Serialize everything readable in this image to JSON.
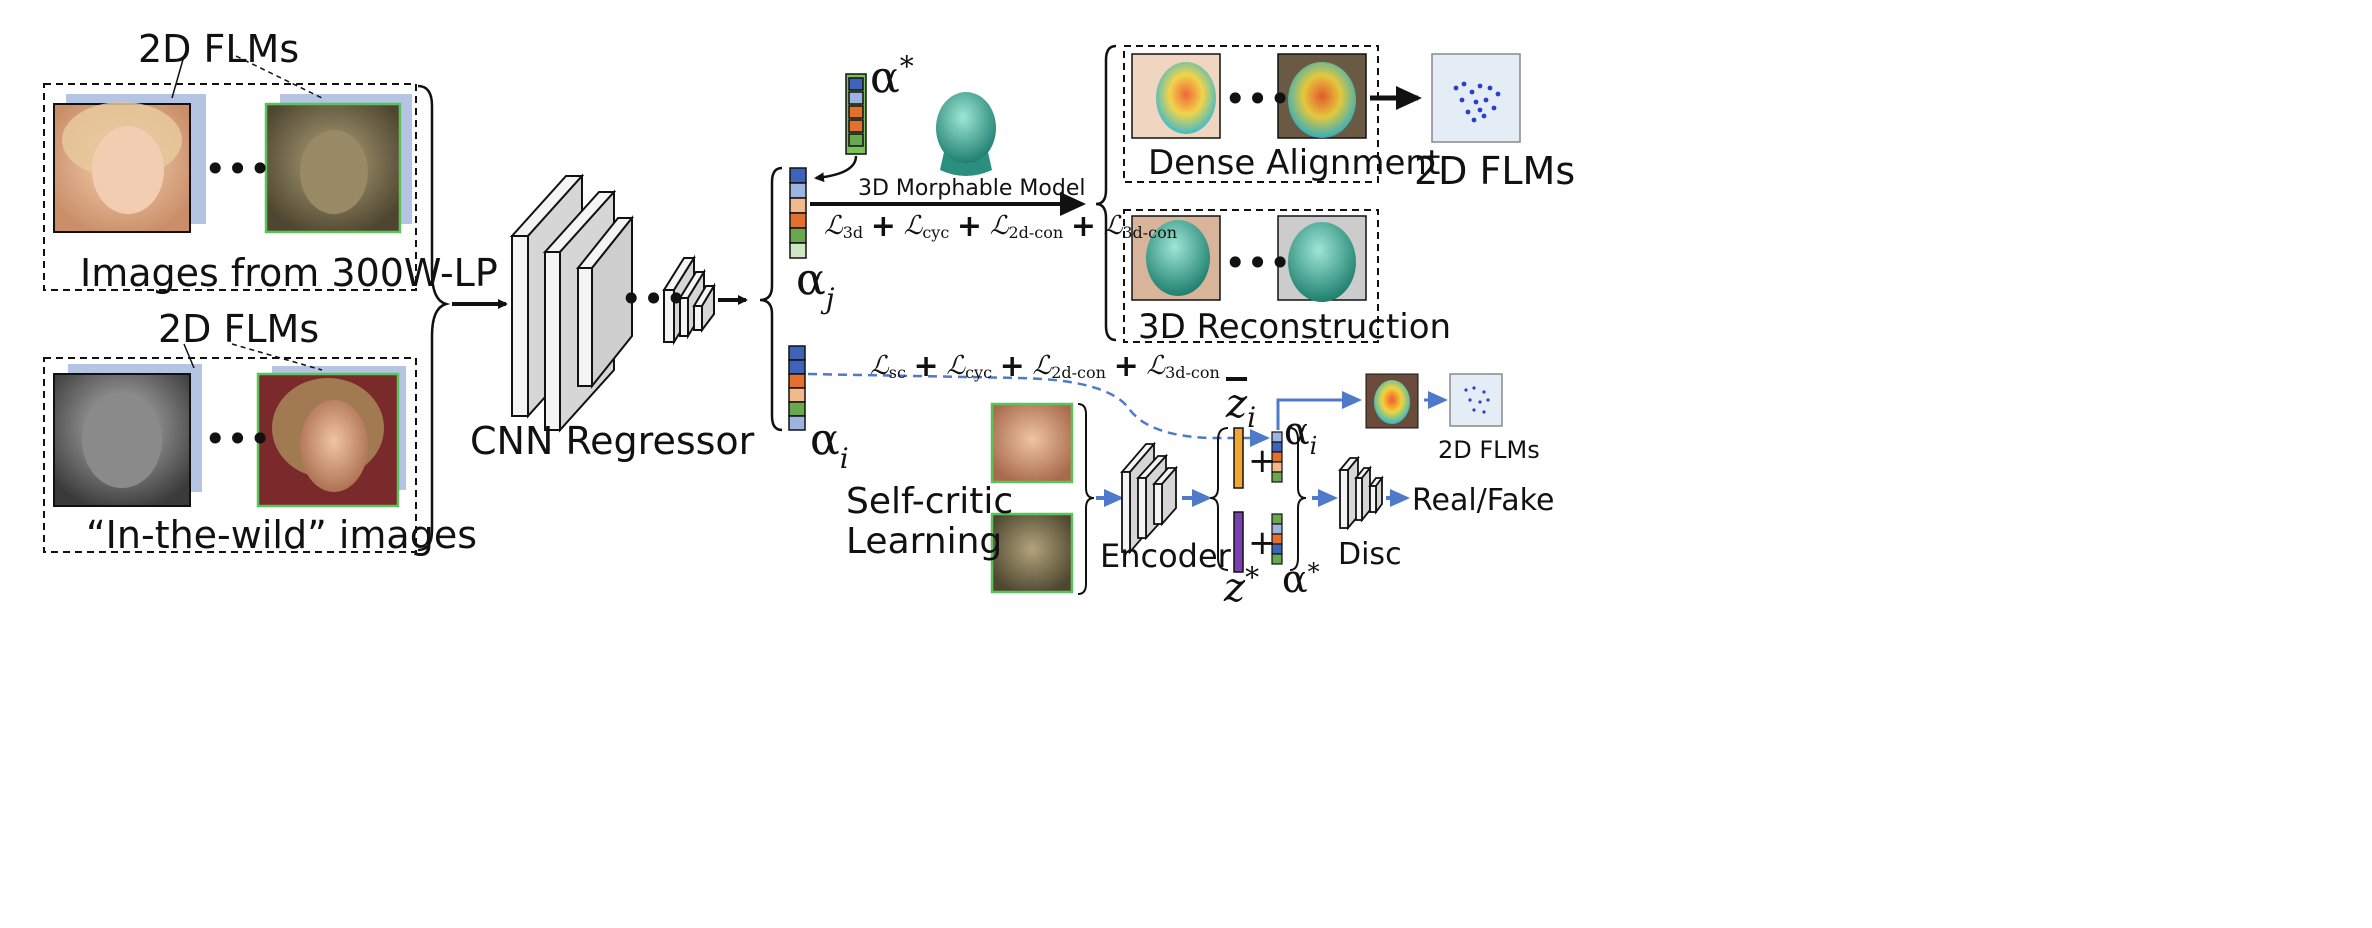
{
  "labels": {
    "flm_top": "2D FLMs",
    "flm_mid": "2D FLMs",
    "images_300w": "Images from 300W-LP",
    "in_the_wild": "“In-the-wild” images",
    "cnn_regressor": "CNN Regressor",
    "morphable_model": "3D Morphable Model",
    "dense_alignment": "Dense Alignment",
    "reconstruction": "3D Reconstruction",
    "flm_right": "2D FLMs",
    "flm_small": "2D FLMs",
    "self_critic_line1": "Self-critic",
    "self_critic_line2": "Learning",
    "encoder": "Encoder",
    "disc": "Disc",
    "real_fake": "Real/Fake"
  },
  "symbols": {
    "alpha": "α",
    "star": "*",
    "sub_j": "j",
    "sub_i": "i",
    "z": "z",
    "plus": "+",
    "ellipsis": "•••"
  },
  "losses": {
    "top": {
      "t1": "ℒ",
      "s1": "3d",
      "t2": "ℒ",
      "s2": "cyc",
      "t3": "ℒ",
      "s3": "2d-con",
      "t4": "ℒ",
      "s4": "3d-con"
    },
    "bottom": {
      "t1": "ℒ",
      "s1": "sc",
      "t2": "ℒ",
      "s2": "cyc",
      "t3": "ℒ",
      "s3": "2d-con",
      "t4": "ℒ",
      "s4": "3d-con"
    }
  },
  "colors": {
    "vector_blue": "#3f63b8",
    "vector_light_blue": "#9db4e0",
    "vector_peach": "#f3b88c",
    "vector_orange": "#e3702f",
    "vector_green": "#6aa84f",
    "vector_light_green": "#cfe6c2",
    "z_orange": "#f0a630",
    "z_purple": "#7b3fb4",
    "card_back": "#b4c4e2",
    "photo_border_green": "#5cc35c",
    "dashed_arrow": "#4f79c9",
    "face_teal": "#3fae9b"
  }
}
